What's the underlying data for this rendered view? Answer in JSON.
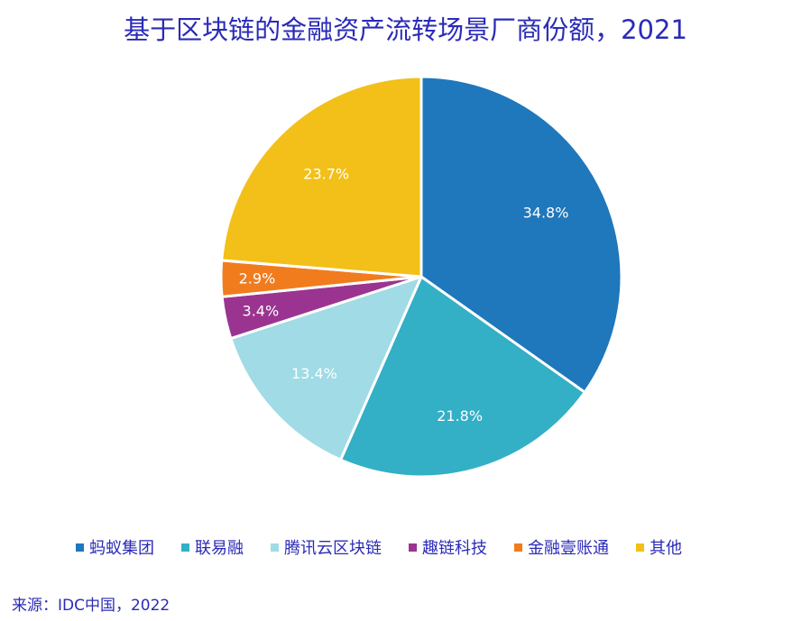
{
  "chart_data": {
    "type": "pie",
    "title": "基于区块链的金融资产流转场景厂商份额，2021",
    "categories": [
      "蚂蚁集团",
      "联易融",
      "腾讯云区块链",
      "趣链科技",
      "金融壹账通",
      "其他"
    ],
    "values": [
      34.8,
      21.8,
      13.4,
      3.4,
      2.9,
      23.7
    ],
    "labels": [
      "34.8%",
      "21.8%",
      "13.4%",
      "3.4%",
      "2.9%",
      "23.7%"
    ],
    "colors": [
      "#1f77bc",
      "#33afc6",
      "#a0dbe6",
      "#9b3490",
      "#f07c1e",
      "#f2c019"
    ],
    "unit": "%",
    "legend_position": "bottom",
    "start_angle": "12 o'clock, clockwise",
    "source": "来源：IDC中国，2022"
  },
  "title": "基于区块链的金融资产流转场景厂商份额，2021",
  "legend": [
    {
      "label": "蚂蚁集团",
      "color": "#1f77bc"
    },
    {
      "label": "联易融",
      "color": "#33afc6"
    },
    {
      "label": "腾讯云区块链",
      "color": "#a0dbe6"
    },
    {
      "label": "趣链科技",
      "color": "#9b3490"
    },
    {
      "label": "金融壹账通",
      "color": "#f07c1e"
    },
    {
      "label": "其他",
      "color": "#f2c019"
    }
  ],
  "source": "来源：IDC中国，2022"
}
